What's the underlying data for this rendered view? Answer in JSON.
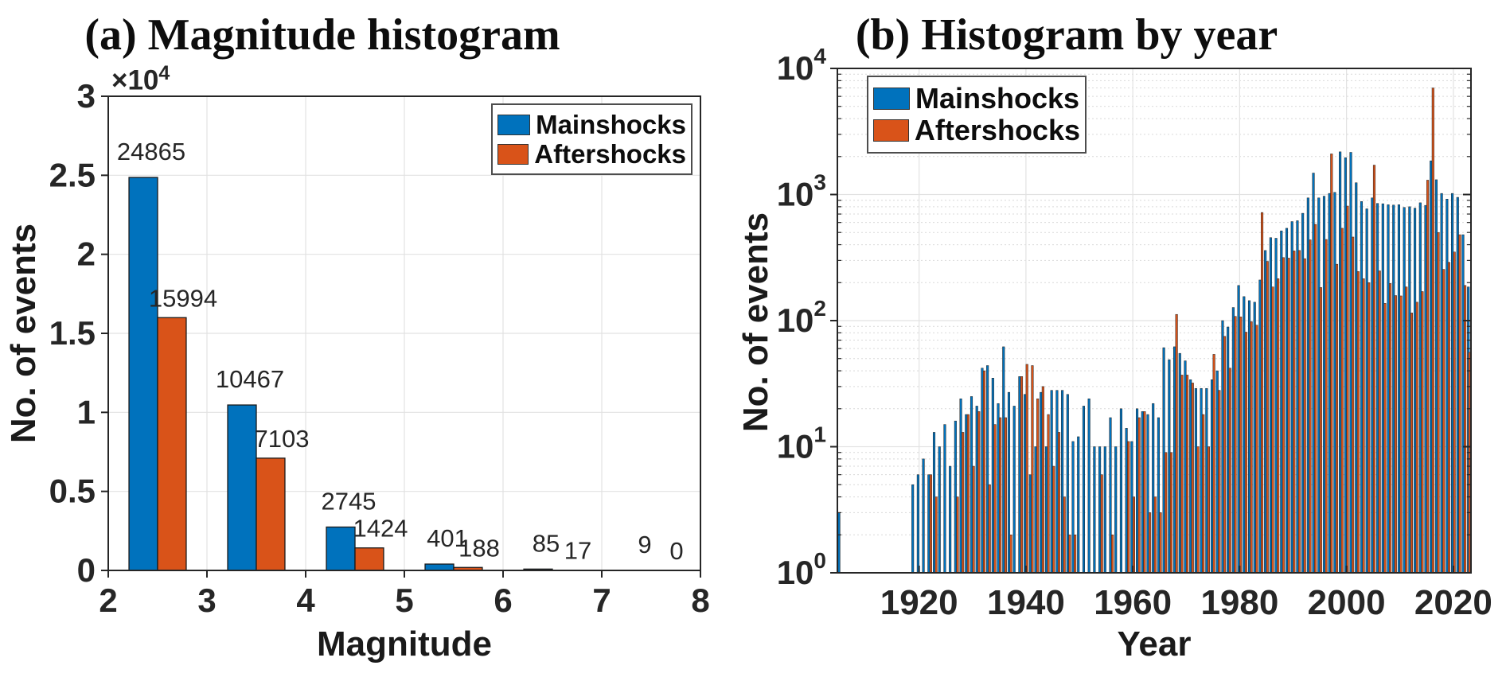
{
  "colors": {
    "mainshocks": "#0072BD",
    "aftershocks": "#D95319",
    "bar_edge": "#1a1a1a",
    "text": "#1a1a1a",
    "tick_text": "#262626",
    "grid": "#e2e2e2",
    "grid_minor": "#d9d9d9",
    "spine": "#262626",
    "background": "#ffffff"
  },
  "chart_data": [
    {
      "panel": "a",
      "type": "bar",
      "title": "(a) Magnitude histogram",
      "xlabel": "Magnitude",
      "ylabel": "No. of events",
      "y_offset_label": {
        "base": "×10",
        "exponent": "4"
      },
      "xlim": [
        2,
        8
      ],
      "ylim": [
        0,
        30000
      ],
      "x_ticks": [
        2,
        3,
        4,
        5,
        6,
        7,
        8
      ],
      "x_tick_labels": [
        "2",
        "3",
        "4",
        "5",
        "6",
        "7",
        "8"
      ],
      "y_ticks": [
        0,
        5000,
        10000,
        15000,
        20000,
        25000,
        30000
      ],
      "y_tick_labels": [
        "0",
        "0.5",
        "1",
        "1.5",
        "2",
        "2.5",
        "3"
      ],
      "bin_centers": [
        2.5,
        3.5,
        4.5,
        5.5,
        6.5,
        7.5
      ],
      "bar_half_width": 0.29,
      "grid": true,
      "legend_position": "top-right",
      "show_value_labels": true,
      "series": [
        {
          "name": "Mainshocks",
          "color_key": "mainshocks",
          "values": [
            24865,
            10467,
            2745,
            401,
            85,
            9
          ]
        },
        {
          "name": "Aftershocks",
          "color_key": "aftershocks",
          "values": [
            15994,
            7103,
            1424,
            188,
            17,
            0
          ]
        }
      ]
    },
    {
      "panel": "b",
      "type": "bar",
      "yscale": "log",
      "title": "(b) Histogram by year",
      "xlabel": "Year",
      "ylabel": "No. of events",
      "xlim": [
        1905,
        2023
      ],
      "x_ticks": [
        1920,
        1940,
        1960,
        1980,
        2000,
        2020
      ],
      "x_tick_labels": [
        "1920",
        "1940",
        "1960",
        "1980",
        "2000",
        "2020"
      ],
      "y_tick_base": "10",
      "y_tick_exponents": [
        0,
        1,
        2,
        3,
        4
      ],
      "grid": true,
      "minor_grid": true,
      "legend_position": "top-left",
      "years": [
        1905,
        1919,
        1920,
        1921,
        1922,
        1923,
        1924,
        1925,
        1926,
        1927,
        1928,
        1929,
        1930,
        1931,
        1932,
        1933,
        1934,
        1935,
        1936,
        1937,
        1938,
        1939,
        1940,
        1941,
        1942,
        1943,
        1944,
        1945,
        1946,
        1947,
        1948,
        1949,
        1950,
        1951,
        1952,
        1953,
        1954,
        1955,
        1956,
        1957,
        1958,
        1959,
        1960,
        1961,
        1962,
        1963,
        1964,
        1965,
        1966,
        1967,
        1968,
        1969,
        1970,
        1971,
        1972,
        1973,
        1974,
        1975,
        1976,
        1977,
        1978,
        1979,
        1980,
        1981,
        1982,
        1983,
        1984,
        1985,
        1986,
        1987,
        1988,
        1989,
        1990,
        1991,
        1992,
        1993,
        1994,
        1995,
        1996,
        1997,
        1998,
        1999,
        2000,
        2001,
        2002,
        2003,
        2004,
        2005,
        2006,
        2007,
        2008,
        2009,
        2010,
        2011,
        2012,
        2013,
        2014,
        2015,
        2016,
        2017,
        2018,
        2019,
        2020,
        2021,
        2022,
        2023
      ],
      "series": [
        {
          "name": "Mainshocks",
          "color_key": "mainshocks",
          "values": [
            3,
            5,
            6,
            8,
            6,
            13,
            10,
            15,
            7,
            16,
            24,
            18,
            25,
            21,
            42,
            44,
            35,
            22,
            62,
            27,
            21,
            36,
            26,
            6,
            10,
            27,
            10,
            28,
            28,
            28,
            26,
            11,
            12,
            21,
            24,
            10,
            10,
            10,
            17,
            10,
            20,
            14,
            11,
            20,
            19,
            18,
            22,
            17,
            61,
            49,
            62,
            55,
            48,
            34,
            29,
            29,
            29,
            34,
            40,
            100,
            89,
            127,
            190,
            155,
            144,
            140,
            210,
            360,
            455,
            450,
            515,
            540,
            610,
            620,
            710,
            940,
            1480,
            940,
            970,
            1020,
            1040,
            2180,
            1960,
            2160,
            1240,
            880,
            770,
            940,
            850,
            845,
            830,
            825,
            830,
            790,
            800,
            780,
            860,
            820,
            1850,
            1310,
            1020,
            920,
            1020,
            950,
            480,
            185
          ]
        },
        {
          "name": "Aftershocks",
          "color_key": "aftershocks",
          "values": [
            0,
            0,
            0,
            0,
            6,
            4,
            0,
            0,
            0,
            4,
            13,
            18,
            7,
            19,
            40,
            5,
            15,
            17,
            17,
            2,
            0,
            36,
            45,
            44,
            24,
            30,
            18,
            7,
            13,
            4,
            2,
            2,
            0,
            0,
            0,
            0,
            6,
            0,
            2,
            0,
            0,
            11,
            4,
            17,
            19,
            3,
            4,
            3,
            9,
            9,
            112,
            37,
            37,
            32,
            10,
            18,
            10,
            54,
            28,
            75,
            42,
            108,
            107,
            81,
            98,
            92,
            720,
            295,
            185,
            215,
            316,
            313,
            357,
            360,
            310,
            437,
            580,
            183,
            440,
            2100,
            280,
            540,
            810,
            460,
            245,
            215,
            200,
            1710,
            248,
            137,
            197,
            158,
            157,
            185,
            115,
            140,
            170,
            1300,
            7000,
            500,
            255,
            290,
            350,
            480,
            190,
            56
          ]
        }
      ]
    }
  ]
}
